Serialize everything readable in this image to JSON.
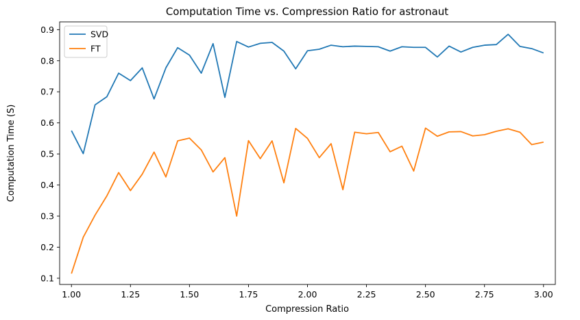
{
  "chart_data": {
    "type": "line",
    "title": "Computation Time vs. Compression Ratio for astronaut",
    "xlabel": "Compression Ratio",
    "ylabel": "Computation Time (S)",
    "xlim": [
      0.95,
      3.05
    ],
    "ylim": [
      0.08,
      0.925
    ],
    "xticks": [
      1.0,
      1.25,
      1.5,
      1.75,
      2.0,
      2.25,
      2.5,
      2.75,
      3.0
    ],
    "xtick_labels": [
      "1.00",
      "1.25",
      "1.50",
      "1.75",
      "2.00",
      "2.25",
      "2.50",
      "2.75",
      "3.00"
    ],
    "yticks": [
      0.1,
      0.2,
      0.3,
      0.4,
      0.5,
      0.6,
      0.7,
      0.8,
      0.9
    ],
    "ytick_labels": [
      "0.1",
      "0.2",
      "0.3",
      "0.4",
      "0.5",
      "0.6",
      "0.7",
      "0.8",
      "0.9"
    ],
    "grid": false,
    "legend_position": "top-left",
    "x": [
      1.0,
      1.05,
      1.1,
      1.15,
      1.2,
      1.25,
      1.3,
      1.35,
      1.4,
      1.45,
      1.5,
      1.55,
      1.6,
      1.65,
      1.7,
      1.75,
      1.8,
      1.85,
      1.9,
      1.95,
      2.0,
      2.05,
      2.1,
      2.15,
      2.2,
      2.25,
      2.3,
      2.35,
      2.4,
      2.45,
      2.5,
      2.55,
      2.6,
      2.65,
      2.7,
      2.75,
      2.8,
      2.85,
      2.9,
      2.95,
      3.0
    ],
    "series": [
      {
        "name": "SVD",
        "color": "#1f77b4",
        "values": [
          0.575,
          0.501,
          0.658,
          0.684,
          0.76,
          0.736,
          0.777,
          0.677,
          0.777,
          0.842,
          0.818,
          0.76,
          0.855,
          0.682,
          0.862,
          0.844,
          0.856,
          0.859,
          0.831,
          0.774,
          0.832,
          0.837,
          0.85,
          0.845,
          0.847,
          0.846,
          0.845,
          0.831,
          0.845,
          0.843,
          0.843,
          0.812,
          0.847,
          0.828,
          0.843,
          0.85,
          0.852,
          0.885,
          0.846,
          0.839,
          0.825
        ]
      },
      {
        "name": "FT",
        "color": "#ff7f0e",
        "values": [
          0.115,
          0.232,
          0.303,
          0.365,
          0.44,
          0.382,
          0.435,
          0.506,
          0.426,
          0.542,
          0.551,
          0.513,
          0.442,
          0.488,
          0.3,
          0.543,
          0.485,
          0.542,
          0.407,
          0.582,
          0.55,
          0.488,
          0.533,
          0.385,
          0.57,
          0.565,
          0.569,
          0.507,
          0.525,
          0.445,
          0.583,
          0.557,
          0.571,
          0.572,
          0.558,
          0.562,
          0.573,
          0.581,
          0.57,
          0.53,
          0.538
        ]
      }
    ]
  }
}
